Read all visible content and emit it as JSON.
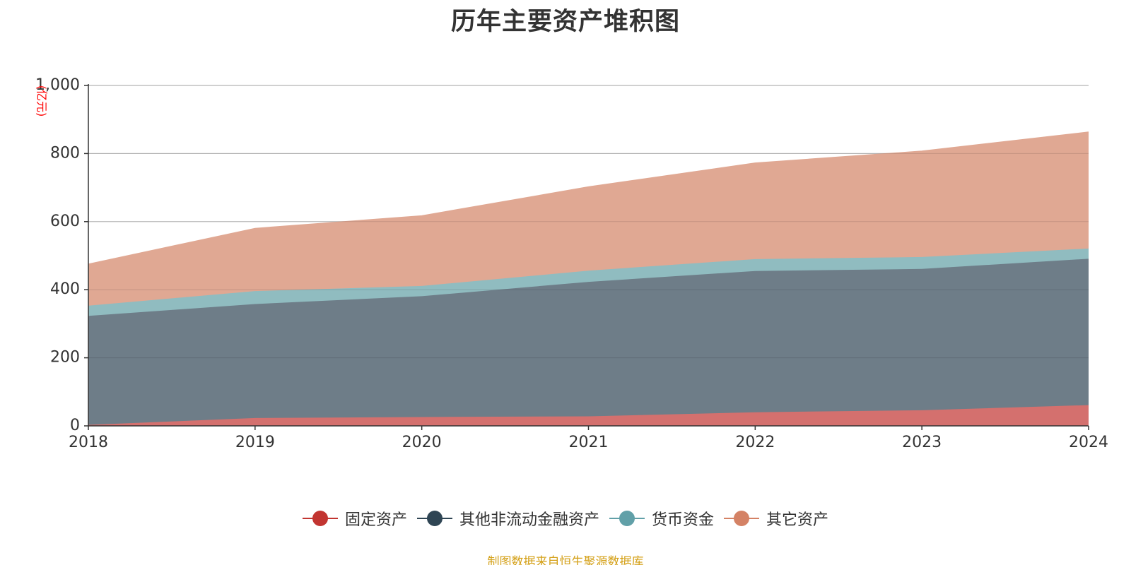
{
  "chart_data": {
    "type": "area",
    "stacked": true,
    "title": "历年主要资产堆积图",
    "unit_label": "(亿元)",
    "x": [
      "2018",
      "2019",
      "2020",
      "2021",
      "2022",
      "2023",
      "2024"
    ],
    "ylim": [
      0,
      1000
    ],
    "yticks": [
      0,
      200,
      400,
      600,
      800,
      1000
    ],
    "ytick_labels": [
      "0",
      "200",
      "400",
      "600",
      "800",
      "1,000"
    ],
    "grid": true,
    "legend_position": "bottom",
    "series": [
      {
        "name": "固定资产",
        "color": "#c23531",
        "fill": "#d4706e",
        "values": [
          3,
          23,
          26,
          28,
          40,
          46,
          61
        ]
      },
      {
        "name": "其他非流动金融资产",
        "color": "#2f4554",
        "fill": "#6e7d88",
        "values": [
          320,
          335,
          355,
          395,
          415,
          415,
          430
        ]
      },
      {
        "name": "货币资金",
        "color": "#61a0a8",
        "fill": "#90bcc0",
        "values": [
          30,
          38,
          30,
          33,
          35,
          35,
          30
        ]
      },
      {
        "name": "其它资产",
        "color": "#d48265",
        "fill": "#e0a893",
        "values": [
          122,
          184,
          206,
          246,
          282,
          311,
          342
        ]
      }
    ]
  },
  "source_note": "制图数据来自恒生聚源数据库"
}
